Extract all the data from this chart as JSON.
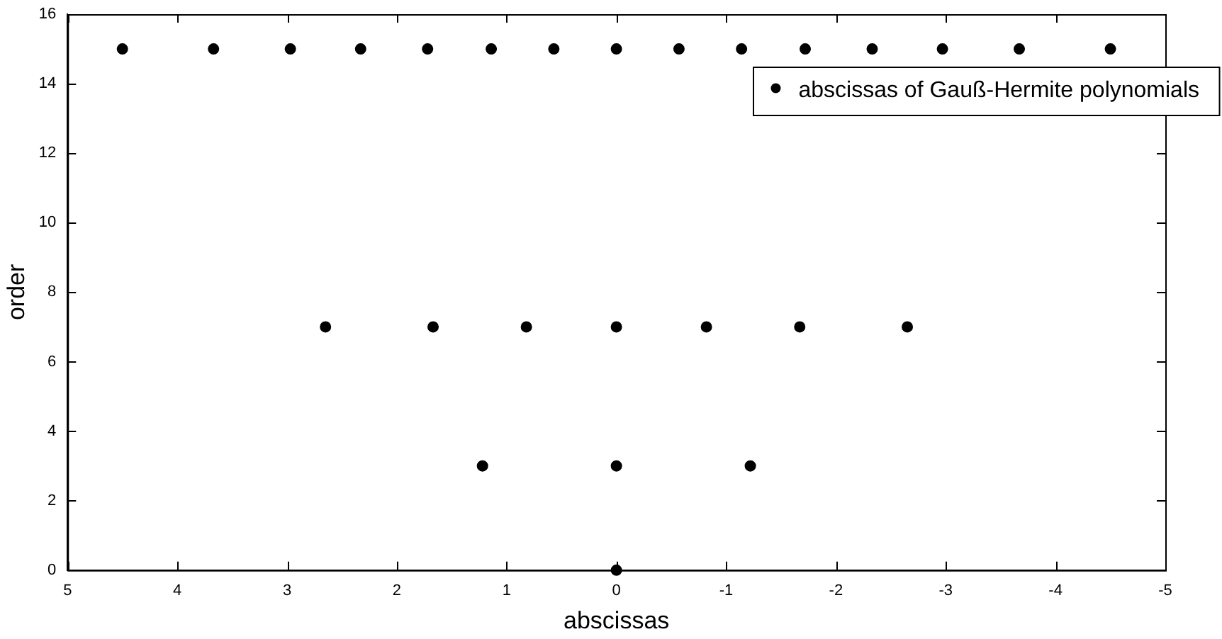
{
  "chart_data": {
    "type": "scatter",
    "xlabel": "abscissas",
    "ylabel": "order",
    "series": [
      {
        "name": "abscissas of Gauß-Hermite polynomials",
        "color": "#000000",
        "x": [
          0,
          1.22,
          0,
          -1.22,
          2.65,
          1.67,
          0.82,
          0,
          -0.82,
          -1.67,
          -2.65,
          4.5,
          3.67,
          2.97,
          2.33,
          1.72,
          1.14,
          0.57,
          0,
          -0.57,
          -1.14,
          -1.72,
          -2.33,
          -2.97,
          -3.67,
          -4.5
        ],
        "values": [
          0,
          3,
          3,
          3,
          7,
          7,
          7,
          7,
          7,
          7,
          7,
          15,
          15,
          15,
          15,
          15,
          15,
          15,
          15,
          15,
          15,
          15,
          15,
          15,
          15,
          15
        ]
      }
    ],
    "xlim": [
      5,
      -5
    ],
    "xticks": [
      5,
      4,
      3,
      2,
      1,
      0,
      -1,
      -2,
      -3,
      -4,
      -5
    ],
    "ylim": [
      0,
      16
    ],
    "yticks": [
      0,
      2,
      4,
      6,
      8,
      10,
      12,
      14,
      16
    ],
    "grid": false,
    "legend": "top right",
    "marker": "circle"
  }
}
